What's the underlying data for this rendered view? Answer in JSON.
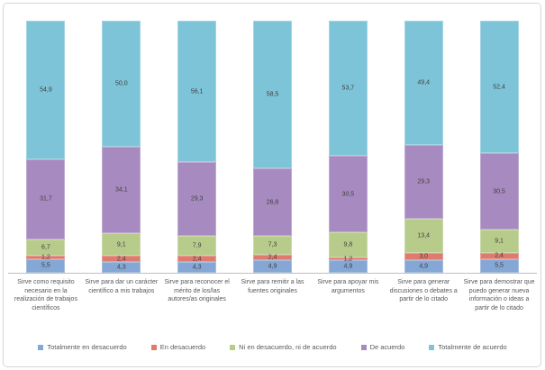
{
  "chart_data": {
    "type": "bar",
    "stacked": true,
    "percent_stacked": true,
    "title": "",
    "xlabel": "",
    "ylabel": "",
    "ylim": [
      0,
      100
    ],
    "grid": false,
    "legend_position": "bottom",
    "decimal_separator": ",",
    "categories": [
      "Sirve como requisito necesario en la realización de trabajos científicos",
      "Sirve para dar un carácter científico a mis trabajos",
      "Sirve para reconocer el mérito de los/las autores/as originales",
      "Sirve para remitir a las fuentes originales",
      "Sirve para apoyar mis argumentos",
      "Sirve para generar discusiones o debates a partir de lo citado",
      "Sirve para demostrar que puedo generar nueva información o ideas a partir de lo citado"
    ],
    "series": [
      {
        "name": "Totalmente en desacuerdo",
        "color": "#84A7D5",
        "values": [
          5.5,
          4.3,
          4.3,
          4.9,
          4.9,
          4.9,
          5.5
        ]
      },
      {
        "name": "En desacuerdo",
        "color": "#DF7B6E",
        "values": [
          1.2,
          2.4,
          2.4,
          2.4,
          1.2,
          3.0,
          2.4
        ]
      },
      {
        "name": "Ni en desacuerdo, ni de acuerdo",
        "color": "#B7CB8B",
        "values": [
          6.7,
          9.1,
          7.9,
          7.3,
          9.8,
          13.4,
          9.1
        ]
      },
      {
        "name": "De acuerdo",
        "color": "#A78BC0",
        "values": [
          31.7,
          34.1,
          29.3,
          26.8,
          30.5,
          29.3,
          30.5
        ]
      },
      {
        "name": "Totalmente de acuerdo",
        "color": "#7EC4D8",
        "values": [
          54.9,
          50.0,
          56.1,
          58.5,
          53.7,
          49.4,
          52.4
        ]
      }
    ],
    "value_label_color": "#404040",
    "axis_line_color": "#BFBFBF",
    "category_label_color": "#595959"
  }
}
